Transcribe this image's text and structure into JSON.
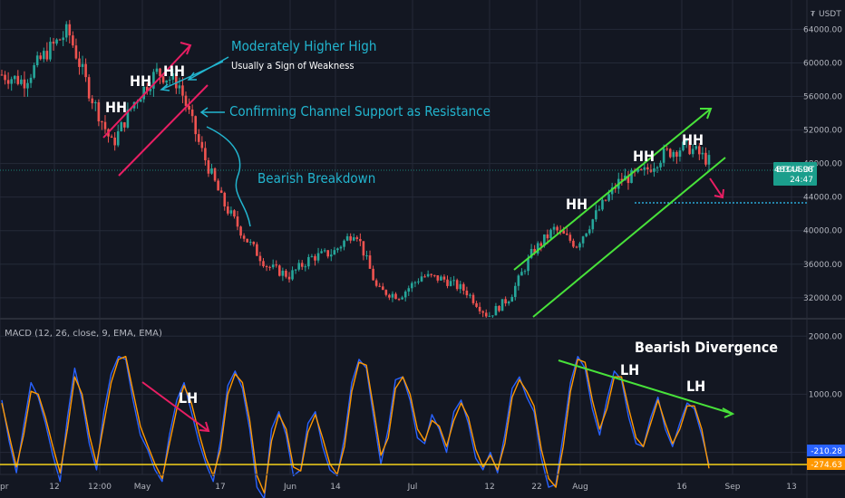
{
  "chart_data": {
    "type": "line",
    "symbol": "BTCUSDT",
    "currency": "USDT",
    "price_axis": {
      "range": [
        29500,
        67500
      ],
      "ticks": [
        32000,
        36000,
        40000,
        44000,
        48000,
        52000,
        56000,
        60000,
        64000
      ],
      "tick_labels": [
        "32000.00",
        "36000.00",
        "40000.00",
        "44000.00",
        "48000.00",
        "52000.00",
        "56000.00",
        "60000.00",
        "64000.00"
      ]
    },
    "last_price": {
      "label": "BTCUSDT",
      "value": "48344.98",
      "countdown": "24:47"
    },
    "support_level": 44000,
    "x_labels": [
      "pr",
      "12",
      "12:00",
      "May",
      "17",
      "Jun",
      "14",
      "Jul",
      "12",
      "22",
      "Aug",
      "16",
      "Sep",
      "13"
    ],
    "price_series": {
      "dates": [
        "Apr 5",
        "Apr 9",
        "Apr 12",
        "Apr 14",
        "Apr 18",
        "Apr 23",
        "May 1",
        "May 8",
        "May 10",
        "May 12",
        "May 17",
        "May 19",
        "May 23",
        "May 29",
        "Jun 4",
        "Jun 10",
        "Jun 15",
        "Jun 21",
        "Jun 26",
        "Jul 1",
        "Jul 7",
        "Jul 13",
        "Jul 20",
        "Jul 22",
        "Jul 26",
        "Jul 30",
        "Aug 3",
        "Aug 7",
        "Aug 12",
        "Aug 16",
        "Aug 21",
        "Aug 23",
        "Aug 28"
      ],
      "close": [
        58600,
        57800,
        61200,
        63800,
        56300,
        50200,
        55400,
        58900,
        57600,
        49800,
        43400,
        39200,
        35800,
        34600,
        36800,
        37400,
        40100,
        32900,
        32200,
        34600,
        34200,
        32800,
        29800,
        32100,
        37400,
        40200,
        38300,
        42400,
        46100,
        46800,
        49200,
        50100,
        48300
      ]
    },
    "macd_panel": {
      "label": "MACD (12, 26, close, 9, EMA, EMA)",
      "range": [
        -380,
        2300
      ],
      "ticks": [
        0,
        1000,
        2000
      ],
      "tick_labels": [
        "0.00",
        "1000.00",
        "2000.00"
      ],
      "macd_value": "-210.28",
      "signal_value": "-274.63",
      "series": [
        {
          "name": "MACD",
          "color": "#2962ff",
          "values": [
            900,
            200,
            -350,
            450,
            1200,
            950,
            500,
            -50,
            -500,
            600,
            1450,
            900,
            150,
            -300,
            700,
            1350,
            1650,
            1600,
            900,
            300,
            50,
            -300,
            -500,
            300,
            900,
            1200,
            700,
            200,
            -200,
            -500,
            200,
            1150,
            1400,
            1100,
            400,
            -600,
            -800,
            400,
            700,
            300,
            -400,
            -300,
            500,
            700,
            100,
            -300,
            -400,
            250,
            1200,
            1600,
            1450,
            600,
            -200,
            400,
            1250,
            1300,
            900,
            250,
            150,
            650,
            400,
            0,
            700,
            900,
            500,
            -100,
            -300,
            0,
            -350,
            300,
            1100,
            1300,
            950,
            700,
            -100,
            -600,
            -550,
            300,
            1200,
            1650,
            1450,
            750,
            300,
            900,
            1400,
            1250,
            600,
            150,
            100,
            600,
            950,
            400,
            100,
            500,
            850,
            750,
            300,
            -210
          ]
        },
        {
          "name": "Signal",
          "color": "#ff9800",
          "values": [
            850,
            300,
            -250,
            300,
            1050,
            1000,
            600,
            100,
            -350,
            400,
            1300,
            1000,
            300,
            -200,
            500,
            1200,
            1600,
            1650,
            1050,
            450,
            120,
            -200,
            -450,
            150,
            750,
            1150,
            850,
            350,
            -100,
            -400,
            50,
            1000,
            1350,
            1200,
            550,
            -400,
            -700,
            200,
            650,
            400,
            -250,
            -320,
            350,
            650,
            250,
            -200,
            -380,
            100,
            1050,
            1550,
            1500,
            750,
            -50,
            250,
            1100,
            1300,
            1000,
            400,
            200,
            550,
            450,
            100,
            550,
            850,
            600,
            50,
            -250,
            -50,
            -300,
            150,
            950,
            1250,
            1050,
            800,
            50,
            -450,
            -600,
            100,
            1050,
            1600,
            1550,
            900,
            400,
            750,
            1300,
            1300,
            750,
            250,
            100,
            500,
            900,
            500,
            150,
            400,
            800,
            800,
            400,
            -275
          ]
        }
      ]
    },
    "annotations": {
      "hh1": "HH",
      "hh2": "HH",
      "hh3": "HH",
      "hh4": "HH",
      "hh5": "HH",
      "hh6": "HH",
      "moderately_higher_high": "Moderately Higher High",
      "sign_of_weakness": "Usually a Sign of Weakness",
      "channel_support": "Confirming Channel Support as Resistance",
      "bearish_breakdown": "Bearish Breakdown",
      "bearish_divergence": "Bearish Divergence",
      "lh1": "LH",
      "lh2": "LH",
      "lh3": "LH"
    },
    "colors": {
      "background": "#131722",
      "grid": "#242a38",
      "candle_up": "#26a69a",
      "candle_down": "#ef5350",
      "cyan_text": "#22b5cf",
      "pink_line": "#e91e63",
      "green_line": "#48e23a",
      "yellow_line": "#f5d21b",
      "badge": "#1b9e8c"
    }
  }
}
